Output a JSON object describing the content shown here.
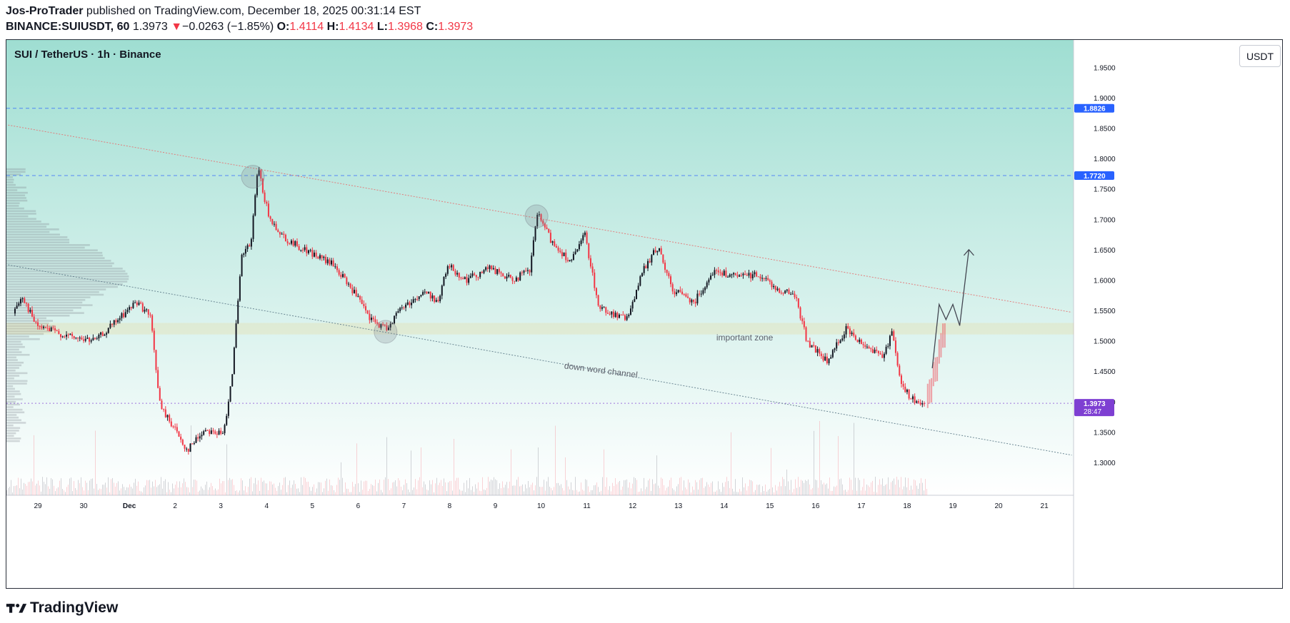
{
  "header": {
    "author": "Jos-ProTrader",
    "published_text": " published on TradingView.com, December 18, 2025 00:31:14 EST",
    "symbol": "BINANCE:SUIUSDT, 60",
    "last": "1.3973",
    "arrow": "▼",
    "change": "−0.0263 (−1.85%)",
    "o_label": "O:",
    "o_value": "1.4114",
    "h_label": "H:",
    "h_value": "1.4134",
    "l_label": "L:",
    "l_value": "1.3968",
    "c_label": "C:",
    "c_value": "1.3973"
  },
  "chart": {
    "symbol_title": "SUI / TetherUS · 1h · Binance",
    "currency_button": "USDT"
  },
  "footer": {
    "brand": "TradingView"
  },
  "colors": {
    "up": "#131722",
    "down": "#f23645",
    "bg_top": "#9fded2",
    "bg_bottom": "#ffffff",
    "blue_line": "#2962ff",
    "price_label": "#7e3fd2",
    "zone": "#f5c04a"
  },
  "chart_data": {
    "type": "candlestick",
    "title": "SUI / TetherUS · 1h · Binance",
    "x_ticks": [
      "29",
      "30",
      "Dec",
      "2",
      "3",
      "4",
      "5",
      "6",
      "7",
      "8",
      "9",
      "10",
      "11",
      "12",
      "13",
      "14",
      "15",
      "16",
      "17",
      "18",
      "19",
      "20",
      "21"
    ],
    "y_ticks": [
      "1.9500",
      "1.9000",
      "1.8500",
      "1.8000",
      "1.7500",
      "1.7000",
      "1.6500",
      "1.6000",
      "1.5500",
      "1.5000",
      "1.4500",
      "1.4000",
      "1.3500",
      "1.3000"
    ],
    "ylim": [
      1.245,
      1.995
    ],
    "price_path_day_close": [
      [
        -1.5,
        1.545
      ],
      [
        -1.3,
        1.575
      ],
      [
        -1.0,
        1.525
      ],
      [
        -0.6,
        1.515
      ],
      [
        -0.2,
        1.505
      ],
      [
        0.3,
        1.5
      ],
      [
        0.8,
        1.535
      ],
      [
        1.2,
        1.565
      ],
      [
        1.5,
        1.54
      ],
      [
        1.72,
        1.39
      ],
      [
        2.0,
        1.36
      ],
      [
        2.3,
        1.32
      ],
      [
        2.7,
        1.355
      ],
      [
        3.1,
        1.345
      ],
      [
        3.3,
        1.455
      ],
      [
        3.5,
        1.64
      ],
      [
        3.7,
        1.66
      ],
      [
        3.85,
        1.785
      ],
      [
        4.1,
        1.7
      ],
      [
        4.5,
        1.665
      ],
      [
        5.0,
        1.645
      ],
      [
        5.5,
        1.625
      ],
      [
        6.0,
        1.575
      ],
      [
        6.3,
        1.535
      ],
      [
        6.65,
        1.52
      ],
      [
        7.0,
        1.555
      ],
      [
        7.5,
        1.58
      ],
      [
        7.8,
        1.565
      ],
      [
        8.0,
        1.625
      ],
      [
        8.4,
        1.6
      ],
      [
        8.9,
        1.62
      ],
      [
        9.4,
        1.6
      ],
      [
        9.8,
        1.615
      ],
      [
        9.95,
        1.71
      ],
      [
        10.3,
        1.66
      ],
      [
        10.7,
        1.63
      ],
      [
        11.0,
        1.675
      ],
      [
        11.3,
        1.555
      ],
      [
        11.9,
        1.535
      ],
      [
        12.3,
        1.62
      ],
      [
        12.6,
        1.655
      ],
      [
        12.9,
        1.585
      ],
      [
        13.4,
        1.565
      ],
      [
        13.8,
        1.615
      ],
      [
        14.3,
        1.605
      ],
      [
        14.8,
        1.61
      ],
      [
        15.2,
        1.585
      ],
      [
        15.6,
        1.575
      ],
      [
        15.85,
        1.5
      ],
      [
        16.3,
        1.465
      ],
      [
        16.7,
        1.52
      ],
      [
        16.9,
        1.505
      ],
      [
        17.3,
        1.485
      ],
      [
        17.55,
        1.475
      ],
      [
        17.7,
        1.52
      ],
      [
        17.9,
        1.435
      ],
      [
        18.1,
        1.405
      ],
      [
        18.4,
        1.395
      ]
    ],
    "projection": [
      [
        18.55,
        1.455
      ],
      [
        18.7,
        1.56
      ],
      [
        18.85,
        1.535
      ],
      [
        19.0,
        1.56
      ],
      [
        19.15,
        1.525
      ],
      [
        19.35,
        1.65
      ]
    ],
    "horizontal_levels": [
      {
        "price": 1.8826,
        "label": "1.8826",
        "style": "dashed",
        "color": "#2962ff"
      },
      {
        "price": 1.772,
        "label": "1.7720",
        "style": "dashed",
        "color": "#2962ff"
      },
      {
        "price": 1.3973,
        "label": "1.3973",
        "countdown": "28:47",
        "style": "dotted",
        "color": "#7e3fd2"
      }
    ],
    "zone": {
      "price_low": 1.511,
      "price_high": 1.529,
      "label": "important zone"
    },
    "channel": {
      "label": "down word channel",
      "upper": [
        [
          -1.65,
          1.855
        ],
        [
          21.6,
          1.547
        ]
      ],
      "lower": [
        [
          -1.65,
          1.625
        ],
        [
          21.6,
          1.312
        ]
      ]
    },
    "circles": [
      [
        3.7,
        1.77
      ],
      [
        6.6,
        1.515
      ],
      [
        9.9,
        1.705
      ]
    ],
    "volume_profile": "left-side horizontal histogram",
    "volume": "bars at chart bottom"
  }
}
